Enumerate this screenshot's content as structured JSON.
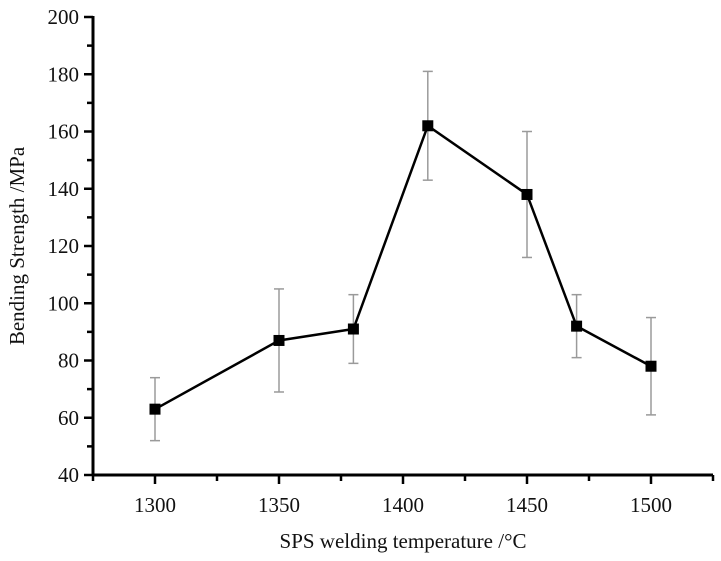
{
  "chart_data": {
    "type": "line",
    "title": "",
    "xlabel": "SPS welding temperature /°C",
    "ylabel": "Bending Strength /MPa",
    "xlim": [
      1275,
      1525
    ],
    "ylim": [
      40,
      200
    ],
    "xticks": [
      1300,
      1350,
      1400,
      1450,
      1500
    ],
    "yticks": [
      40,
      60,
      80,
      100,
      120,
      140,
      160,
      180,
      200
    ],
    "x_minor_step": 25,
    "y_minor_step": 10,
    "grid": false,
    "series": [
      {
        "name": "Bending Strength",
        "marker": "square",
        "color": "#000000",
        "error_color": "#9a9a9a",
        "x": [
          1300,
          1350,
          1380,
          1410,
          1450,
          1470,
          1500
        ],
        "y": [
          63,
          87,
          91,
          162,
          138,
          92,
          78
        ],
        "err_low": [
          52,
          69,
          79,
          143,
          116,
          81,
          61
        ],
        "err_high": [
          74,
          105,
          103,
          181,
          160,
          103,
          95
        ]
      }
    ]
  }
}
